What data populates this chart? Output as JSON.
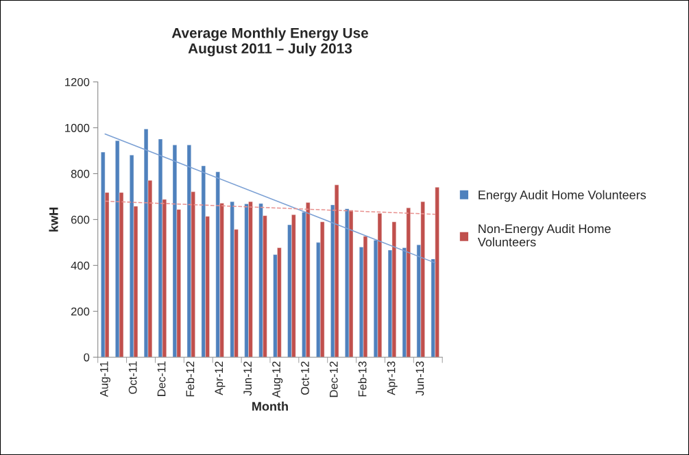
{
  "chart_data": {
    "type": "bar",
    "title": "Average Monthly Energy Use\nAugust 2011 – July 2013",
    "xlabel": "Month",
    "ylabel": "kwH",
    "categories": [
      "Aug-11",
      null,
      "Oct-11",
      null,
      "Dec-11",
      null,
      "Feb-12",
      null,
      "Apr-12",
      null,
      "Jun-12",
      null,
      "Aug-12",
      null,
      "Oct-12",
      null,
      "Dec-12",
      null,
      "Feb-13",
      null,
      "Apr-13",
      null,
      "Jun-13",
      null
    ],
    "series": [
      {
        "name": "Energy Audit Home Volunteers",
        "color": "#4f81bd",
        "values": [
          894,
          944,
          881,
          995,
          951,
          925,
          925,
          834,
          808,
          678,
          668,
          670,
          447,
          577,
          632,
          500,
          664,
          647,
          480,
          510,
          467,
          477,
          490,
          428
        ]
      },
      {
        "name": "Non-Energy Audit Home Volunteers",
        "color": "#c0504d",
        "values": [
          718,
          718,
          658,
          771,
          688,
          644,
          721,
          614,
          671,
          557,
          678,
          617,
          477,
          621,
          674,
          590,
          751,
          641,
          527,
          627,
          590,
          651,
          678,
          741
        ]
      },
      {
        "type": "line",
        "color": "#7ba0d4",
        "line_style": "solid",
        "values": [
          973,
          null,
          null,
          null,
          null,
          null,
          null,
          null,
          null,
          null,
          null,
          null,
          null,
          null,
          null,
          null,
          null,
          null,
          null,
          null,
          null,
          null,
          null,
          411
        ]
      },
      {
        "type": "line",
        "color": "#e8908e",
        "line_style": "dashed",
        "values": [
          680,
          null,
          null,
          null,
          null,
          null,
          null,
          null,
          null,
          null,
          null,
          null,
          null,
          null,
          null,
          null,
          null,
          null,
          null,
          null,
          null,
          null,
          null,
          623
        ]
      }
    ],
    "ylim": [
      0,
      1200
    ],
    "yticks": [
      0,
      200,
      400,
      600,
      800,
      1000,
      1200
    ],
    "grid": false,
    "legend": "right"
  }
}
